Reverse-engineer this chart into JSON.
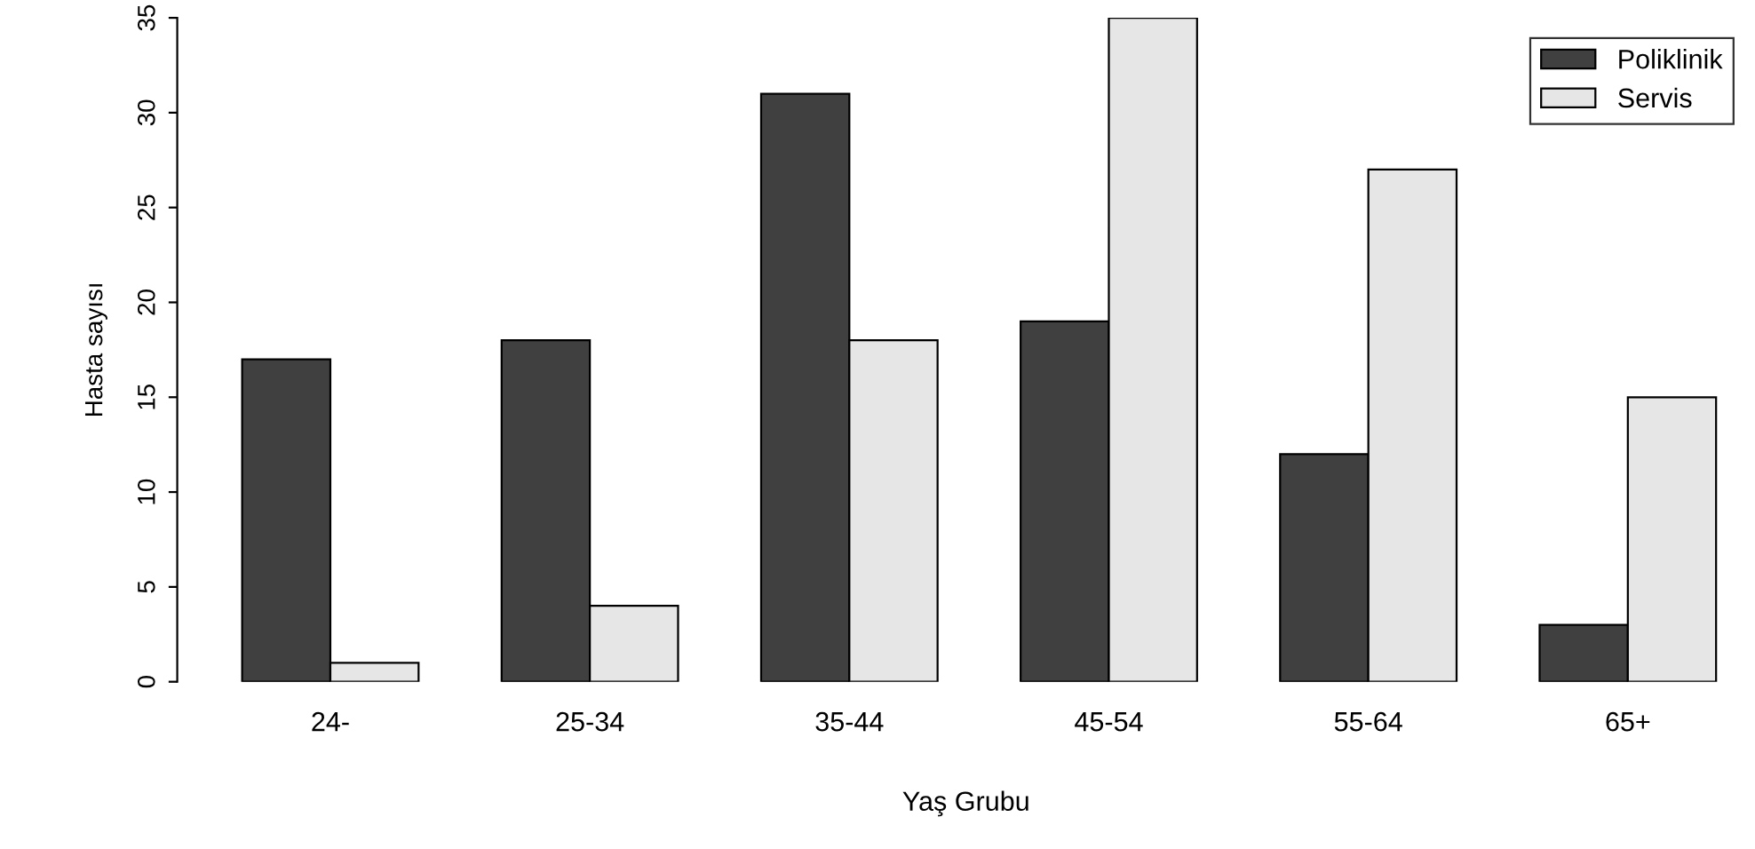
{
  "chart_data": {
    "type": "bar",
    "xlabel": "Yaş Grubu",
    "ylabel": "Hasta sayısı",
    "categories": [
      "24-",
      "25-34",
      "35-44",
      "45-54",
      "55-64",
      "65+"
    ],
    "series": [
      {
        "name": "Poliklinik",
        "color": "#404040",
        "values": [
          17,
          18,
          31,
          19,
          12,
          3
        ]
      },
      {
        "name": "Servis",
        "color": "#e6e6e6",
        "values": [
          1,
          4,
          18,
          35,
          27,
          15
        ]
      }
    ],
    "ylim": [
      0,
      35
    ],
    "yticks": [
      0,
      5,
      10,
      15,
      20,
      25,
      30,
      35
    ],
    "grid": false,
    "legend": "top right"
  }
}
